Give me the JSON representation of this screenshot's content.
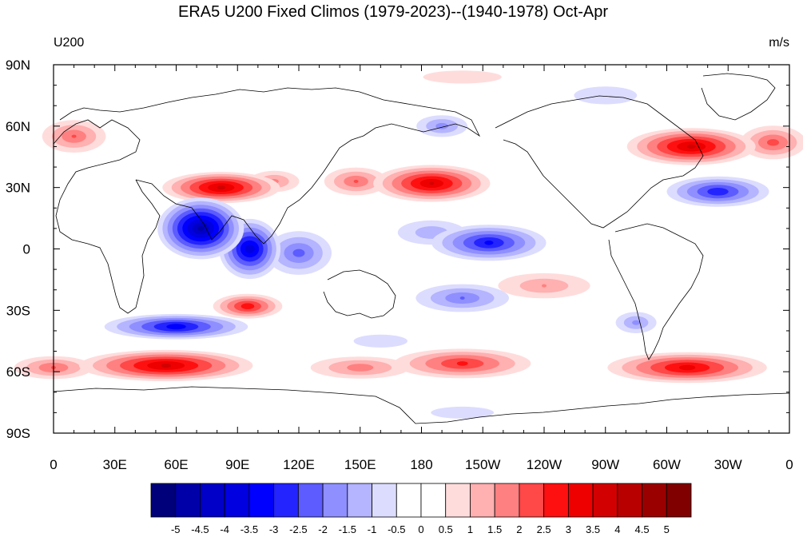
{
  "title": "ERA5 U200 Fixed Climos (1979-2023)--(1940-1978) Oct-Apr",
  "left_label": "U200",
  "right_label": "m/s",
  "map": {
    "projection": "cylindrical-equidistant",
    "lon_range": [
      0,
      360
    ],
    "lat_range": [
      -90,
      90
    ],
    "x_tick_labels": [
      "0",
      "30E",
      "60E",
      "90E",
      "120E",
      "150E",
      "180",
      "150W",
      "120W",
      "90W",
      "60W",
      "30W",
      "0"
    ],
    "y_tick_labels": [
      "90N",
      "60N",
      "30N",
      "0",
      "30S",
      "60S",
      "90S"
    ],
    "y_tick_values": [
      90,
      60,
      30,
      0,
      -30,
      -60,
      -90
    ],
    "anomalies": [
      {
        "lon": 82,
        "lat": 30,
        "amp": 3.6,
        "rlon": 20,
        "rlat": 5
      },
      {
        "lon": 185,
        "lat": 32,
        "amp": 3.5,
        "rlon": 20,
        "rlat": 6
      },
      {
        "lon": 148,
        "lat": 33,
        "amp": 2.0,
        "rlon": 12,
        "rlat": 5
      },
      {
        "lon": 108,
        "lat": 33,
        "amp": 1.6,
        "rlon": 10,
        "rlat": 4
      },
      {
        "lon": 312,
        "lat": 50,
        "amp": 3.6,
        "rlon": 22,
        "rlat": 6
      },
      {
        "lon": 352,
        "lat": 52,
        "amp": 2.2,
        "rlon": 12,
        "rlat": 6
      },
      {
        "lon": 10,
        "lat": 55,
        "amp": 2.0,
        "rlon": 12,
        "rlat": 6
      },
      {
        "lon": 72,
        "lat": 10,
        "amp": -4.6,
        "rlon": 14,
        "rlat": 10
      },
      {
        "lon": 96,
        "lat": 0,
        "amp": -3.8,
        "rlon": 10,
        "rlat": 10
      },
      {
        "lon": 120,
        "lat": -2,
        "amp": -2.2,
        "rlon": 12,
        "rlat": 8
      },
      {
        "lon": 213,
        "lat": 3,
        "amp": -3.1,
        "rlon": 20,
        "rlat": 6
      },
      {
        "lon": 185,
        "lat": 8,
        "amp": -1.4,
        "rlon": 15,
        "rlat": 5
      },
      {
        "lon": 190,
        "lat": 60,
        "amp": -1.7,
        "rlon": 10,
        "rlat": 4
      },
      {
        "lon": 325,
        "lat": 28,
        "amp": -2.9,
        "rlon": 18,
        "rlat": 5
      },
      {
        "lon": 200,
        "lat": -24,
        "amp": -2.0,
        "rlon": 18,
        "rlat": 5
      },
      {
        "lon": 60,
        "lat": -38,
        "amp": -3.3,
        "rlon": 25,
        "rlat": 4
      },
      {
        "lon": 285,
        "lat": -36,
        "amp": -1.6,
        "rlon": 8,
        "rlat": 4
      },
      {
        "lon": 160,
        "lat": -45,
        "amp": -0.8,
        "rlon": 20,
        "rlat": 4
      },
      {
        "lon": 55,
        "lat": -57,
        "amp": 3.6,
        "rlon": 30,
        "rlat": 5
      },
      {
        "lon": 200,
        "lat": -56,
        "amp": 2.6,
        "rlon": 25,
        "rlat": 5
      },
      {
        "lon": 310,
        "lat": -58,
        "amp": 3.2,
        "rlon": 28,
        "rlat": 5
      },
      {
        "lon": 150,
        "lat": -58,
        "amp": 1.8,
        "rlon": 20,
        "rlat": 4
      },
      {
        "lon": 0,
        "lat": -58,
        "amp": 2.0,
        "rlon": 15,
        "rlat": 4
      },
      {
        "lon": 95,
        "lat": -28,
        "amp": 2.8,
        "rlon": 12,
        "rlat": 4
      },
      {
        "lon": 240,
        "lat": -18,
        "amp": 1.5,
        "rlon": 20,
        "rlat": 5
      },
      {
        "lon": 200,
        "lat": -80,
        "amp": -0.9,
        "rlon": 20,
        "rlat": 3
      },
      {
        "lon": 270,
        "lat": 75,
        "amp": -0.9,
        "rlon": 20,
        "rlat": 5
      },
      {
        "lon": 200,
        "lat": 84,
        "amp": 0.8,
        "rlon": 30,
        "rlat": 4
      }
    ]
  },
  "colorbar": {
    "colors": [
      "#00007a",
      "#0000a8",
      "#0000c8",
      "#0000e0",
      "#0000ff",
      "#2424ff",
      "#5c5cff",
      "#8f8fff",
      "#b4b4ff",
      "#dcdcff",
      "#ffffff",
      "#ffffff",
      "#ffdcdc",
      "#ffb0b0",
      "#ff8080",
      "#ff4848",
      "#ff1010",
      "#ee0000",
      "#d20000",
      "#b80000",
      "#9a0000",
      "#800000"
    ],
    "labels": [
      "-5",
      "-4.5",
      "-4",
      "-3.5",
      "-3",
      "-2.5",
      "-2",
      "-1.5",
      "-1",
      "-0.5",
      "0",
      "0.5",
      "1",
      "1.5",
      "2",
      "2.5",
      "3",
      "3.5",
      "4",
      "4.5",
      "5"
    ],
    "levels": [
      -5,
      -4.5,
      -4,
      -3.5,
      -3,
      -2.5,
      -2,
      -1.5,
      -1,
      -0.5,
      0,
      0.5,
      1,
      1.5,
      2,
      2.5,
      3,
      3.5,
      4,
      4.5,
      5
    ]
  }
}
